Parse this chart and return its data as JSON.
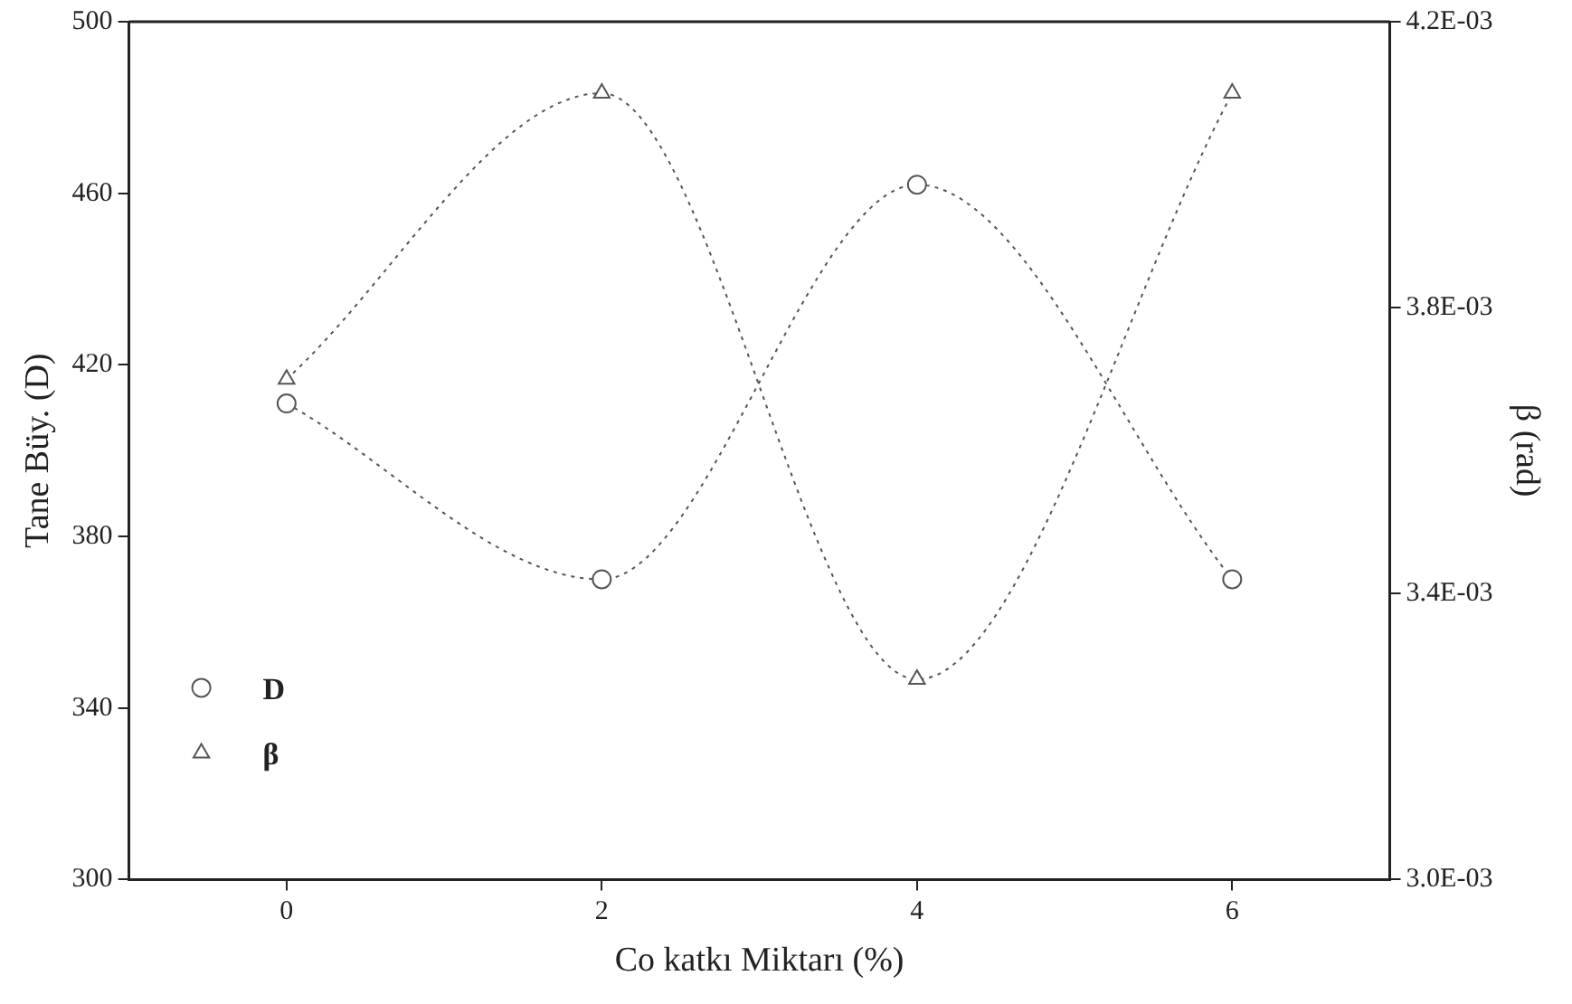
{
  "chart_data": {
    "type": "line",
    "xlabel": "Co katkı Miktarı (%)",
    "ylabel": "Tane Büy. (D)",
    "y2label": "β (rad)",
    "x": [
      0,
      2,
      4,
      6
    ],
    "series": [
      {
        "name": "D",
        "color": "#555555",
        "values": [
          411,
          370,
          462,
          370
        ],
        "marker": "circle"
      },
      {
        "name": "β",
        "color": "#555555",
        "values": [
          0.0037,
          0.0041,
          0.00328,
          0.0041
        ],
        "marker": "triangle",
        "axis": "y2"
      }
    ],
    "xlim": [
      -1,
      7
    ],
    "xticks": [
      0,
      2,
      4,
      6
    ],
    "ylim": [
      300,
      500
    ],
    "yticks": [
      300,
      340,
      380,
      420,
      460,
      500
    ],
    "y2lim": [
      0.003,
      0.0042
    ],
    "y2ticks": [
      {
        "value": 0.003,
        "label": "3.0E-03"
      },
      {
        "value": 0.0034,
        "label": "3.4E-03"
      },
      {
        "value": 0.0038,
        "label": "3.8E-03"
      },
      {
        "value": 0.0042,
        "label": "4.2E-03"
      }
    ],
    "grid": false,
    "legend": "bottom left",
    "line_style": "dotted"
  }
}
